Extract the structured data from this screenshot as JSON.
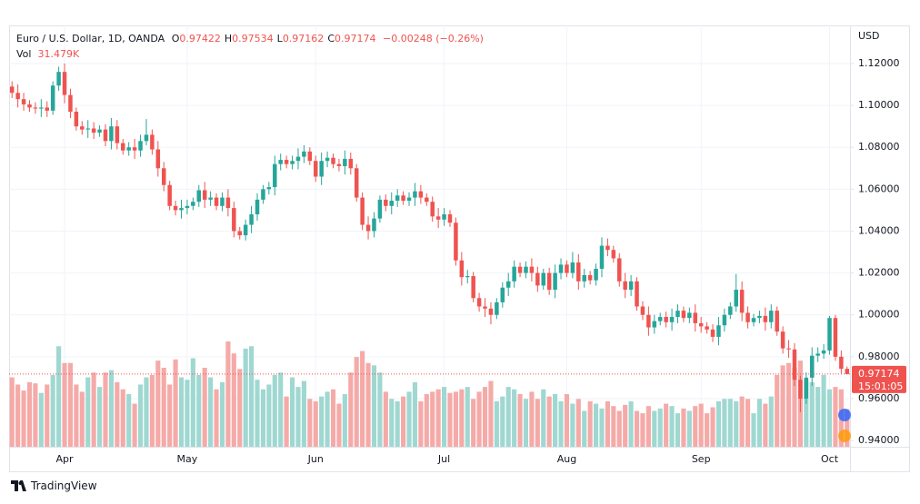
{
  "chart_data": {
    "type": "candlestick",
    "title": "Euro / U.S. Dollar, 1D, OANDA",
    "legend": [
      {
        "key": "O",
        "text": "0.97422"
      },
      {
        "key": "H",
        "text": "0.97534"
      },
      {
        "key": "L",
        "text": "0.97162"
      },
      {
        "key": "C",
        "text": "0.97174"
      }
    ],
    "change": "−0.00248 (−0.26%)",
    "volume_key": "Vol",
    "volume_text": "31.479K",
    "currency": "USD",
    "price_tag": {
      "price": "0.97174",
      "countdown": "15:01:05"
    },
    "brand": "TradingView",
    "up_color": "#26a69a",
    "down_color": "#ef5350",
    "volume_up_color": "#9fd8d1",
    "volume_down_color": "#f5aaa8",
    "grid": true,
    "categories": [
      null,
      null,
      null,
      null,
      null,
      null,
      null,
      null,
      null,
      "Apr",
      null,
      null,
      null,
      null,
      null,
      null,
      null,
      null,
      null,
      null,
      null,
      null,
      null,
      null,
      null,
      null,
      null,
      null,
      null,
      null,
      "May",
      null,
      null,
      null,
      null,
      null,
      null,
      null,
      null,
      null,
      null,
      null,
      null,
      null,
      null,
      null,
      null,
      null,
      null,
      null,
      null,
      null,
      "Jun",
      null,
      null,
      null,
      null,
      null,
      null,
      null,
      null,
      null,
      null,
      null,
      null,
      null,
      null,
      null,
      null,
      null,
      null,
      null,
      null,
      null,
      "Jul",
      null,
      null,
      null,
      null,
      null,
      null,
      null,
      null,
      null,
      null,
      null,
      null,
      null,
      null,
      null,
      null,
      null,
      null,
      null,
      null,
      "Aug",
      null,
      null,
      null,
      null,
      null,
      null,
      null,
      null,
      null,
      null,
      null,
      null,
      null,
      null,
      null,
      null,
      null,
      null,
      null,
      null,
      null,
      null,
      "Sep",
      null,
      null,
      null,
      null,
      null,
      null,
      null,
      null,
      null,
      null,
      null,
      null,
      null,
      null,
      null,
      null,
      null,
      null,
      null,
      null,
      null,
      "Oct",
      null,
      null,
      null
    ],
    "open": [
      1.109,
      1.106,
      1.103,
      1.1005,
      1.099,
      1.0985,
      1.099,
      1.0975,
      1.1095,
      1.116,
      1.105,
      1.097,
      1.09,
      1.0885,
      1.089,
      1.087,
      1.0885,
      1.083,
      1.09,
      1.082,
      1.0785,
      1.08,
      1.0785,
      1.083,
      1.086,
      1.079,
      1.07,
      1.062,
      1.052,
      1.05,
      1.051,
      1.052,
      1.054,
      1.0595,
      1.055,
      1.056,
      1.052,
      1.056,
      1.051,
      1.04,
      1.038,
      1.043,
      1.048,
      1.055,
      1.06,
      1.061,
      1.072,
      1.074,
      1.072,
      1.0735,
      1.0755,
      1.078,
      1.0735,
      1.066,
      1.0735,
      1.075,
      1.072,
      1.071,
      1.0745,
      1.07,
      1.056,
      1.043,
      1.04,
      1.046,
      1.055,
      1.052,
      1.0545,
      1.057,
      1.0545,
      1.056,
      1.059,
      1.056,
      1.054,
      1.047,
      1.0455,
      1.048,
      1.044,
      1.026,
      1.018,
      1.0185,
      1.008,
      1.004,
      1.003,
      1.0,
      1.006,
      1.013,
      1.016,
      1.023,
      1.02,
      1.023,
      1.02,
      1.014,
      1.02,
      1.012,
      1.02,
      1.024,
      1.02,
      1.025,
      1.016,
      1.019,
      1.0165,
      1.022,
      1.033,
      1.031,
      1.027,
      1.016,
      1.012,
      1.016,
      1.004,
      1.0,
      0.994,
      0.997,
      0.999,
      0.9965,
      0.999,
      1.002,
      0.9985,
      1.001,
      0.996,
      0.9945,
      0.993,
      0.9895,
      0.995,
      1.0,
      1.004,
      1.012,
      1.001,
      0.9965,
      0.9985,
      0.9995,
      0.9965,
      1.002,
      0.992,
      0.984,
      0.9835,
      0.969,
      0.96,
      0.97,
      0.9805,
      0.9815,
      0.983,
      0.9985,
      0.98,
      0.97422
    ],
    "high": [
      1.1115,
      1.11,
      1.106,
      1.1025,
      1.1015,
      1.103,
      1.102,
      1.1115,
      1.1185,
      1.12,
      1.108,
      1.099,
      1.0925,
      1.093,
      1.092,
      1.0905,
      1.091,
      1.094,
      1.093,
      1.084,
      1.0825,
      1.084,
      1.086,
      1.0935,
      1.0885,
      1.083,
      1.073,
      1.064,
      1.0545,
      1.055,
      1.055,
      1.056,
      1.062,
      1.0635,
      1.059,
      1.058,
      1.0585,
      1.06,
      1.054,
      1.042,
      1.0455,
      1.052,
      1.058,
      1.062,
      1.0635,
      1.076,
      1.077,
      1.076,
      1.076,
      1.0795,
      1.081,
      1.08,
      1.076,
      1.0775,
      1.078,
      1.077,
      1.0745,
      1.0785,
      1.0775,
      1.072,
      1.0585,
      1.047,
      1.049,
      1.057,
      1.0575,
      1.0585,
      1.06,
      1.059,
      1.0585,
      1.063,
      1.062,
      1.058,
      1.0565,
      1.051,
      1.051,
      1.05,
      1.0465,
      1.03,
      1.0215,
      1.0205,
      1.0105,
      1.008,
      1.006,
      1.008,
      1.0155,
      1.02,
      1.026,
      1.025,
      1.0255,
      1.027,
      1.023,
      1.022,
      1.0225,
      1.024,
      1.027,
      1.026,
      1.03,
      1.029,
      1.022,
      1.021,
      1.0245,
      1.037,
      1.0365,
      1.033,
      1.0295,
      1.02,
      1.019,
      1.018,
      1.0065,
      1.004,
      1.0,
      1.001,
      1.0015,
      1.003,
      1.005,
      1.004,
      1.0035,
      1.005,
      0.999,
      0.9965,
      0.9955,
      0.999,
      1.003,
      1.006,
      1.0195,
      1.016,
      1.004,
      1.0005,
      1.002,
      1.0035,
      1.005,
      1.004,
      0.9945,
      0.988,
      0.9865,
      0.971,
      0.9725,
      0.9845,
      0.9845,
      0.986,
      0.9995,
      1.0,
      0.983,
      0.97534
    ],
    "low": [
      1.1035,
      1.099,
      1.0975,
      1.097,
      1.096,
      1.0945,
      1.0945,
      1.0955,
      1.107,
      1.101,
      1.094,
      1.088,
      1.086,
      1.0845,
      1.084,
      1.085,
      1.0805,
      1.079,
      1.079,
      1.0765,
      1.076,
      1.0745,
      1.0755,
      1.081,
      1.0765,
      1.066,
      1.059,
      1.05,
      1.0475,
      1.046,
      1.048,
      1.05,
      1.0515,
      1.051,
      1.052,
      1.05,
      1.0495,
      1.047,
      1.037,
      1.036,
      1.0355,
      1.039,
      1.045,
      1.053,
      1.0575,
      1.057,
      1.069,
      1.07,
      1.0695,
      1.0695,
      1.0725,
      1.0715,
      1.0635,
      1.062,
      1.0705,
      1.07,
      1.0685,
      1.067,
      1.067,
      1.054,
      1.0405,
      1.036,
      1.037,
      1.044,
      1.0495,
      1.048,
      1.0515,
      1.0525,
      1.052,
      1.052,
      1.053,
      1.052,
      1.0445,
      1.0415,
      1.0425,
      1.042,
      1.0235,
      1.014,
      1.015,
      1.006,
      1.0015,
      0.999,
      0.9955,
      0.998,
      1.0035,
      1.009,
      1.013,
      1.018,
      1.0175,
      1.016,
      1.011,
      1.012,
      1.0095,
      1.008,
      1.017,
      1.018,
      1.0175,
      1.012,
      1.013,
      1.0145,
      1.014,
      1.018,
      1.028,
      1.025,
      1.0135,
      1.008,
      1.009,
      1.002,
      0.9975,
      0.99,
      0.991,
      0.995,
      0.994,
      0.9925,
      0.996,
      0.9965,
      0.996,
      0.992,
      0.9915,
      0.991,
      0.987,
      0.9855,
      0.992,
      0.998,
      1.0015,
      0.997,
      0.9935,
      0.9945,
      0.996,
      0.9925,
      0.9935,
      0.99,
      0.9815,
      0.9795,
      0.966,
      0.9535,
      0.9575,
      0.966,
      0.9775,
      0.979,
      0.981,
      0.978,
      0.972,
      0.97162
    ],
    "close": [
      1.106,
      1.103,
      1.1005,
      1.099,
      1.0985,
      1.099,
      1.0975,
      1.1095,
      1.116,
      1.105,
      1.097,
      1.09,
      1.0885,
      1.089,
      1.087,
      1.0885,
      1.083,
      1.09,
      1.082,
      1.0785,
      1.08,
      1.0785,
      1.083,
      1.086,
      1.079,
      1.07,
      1.062,
      1.052,
      1.05,
      1.051,
      1.052,
      1.054,
      1.0595,
      1.055,
      1.056,
      1.052,
      1.056,
      1.051,
      1.04,
      1.038,
      1.043,
      1.048,
      1.055,
      1.06,
      1.061,
      1.072,
      1.074,
      1.072,
      1.0735,
      1.0755,
      1.078,
      1.0735,
      1.066,
      1.0735,
      1.075,
      1.072,
      1.071,
      1.0745,
      1.07,
      1.056,
      1.043,
      1.04,
      1.046,
      1.055,
      1.052,
      1.0545,
      1.057,
      1.0545,
      1.056,
      1.059,
      1.056,
      1.054,
      1.047,
      1.0455,
      1.048,
      1.044,
      1.026,
      1.018,
      1.0185,
      1.008,
      1.004,
      1.003,
      1.0,
      1.006,
      1.013,
      1.016,
      1.023,
      1.02,
      1.023,
      1.02,
      1.014,
      1.02,
      1.012,
      1.02,
      1.024,
      1.02,
      1.025,
      1.016,
      1.019,
      1.0165,
      1.022,
      1.033,
      1.031,
      1.027,
      1.016,
      1.012,
      1.016,
      1.004,
      1.0,
      0.994,
      0.997,
      0.999,
      0.9965,
      0.999,
      1.002,
      0.9985,
      1.001,
      0.996,
      0.9945,
      0.993,
      0.9895,
      0.995,
      1.0,
      1.004,
      1.012,
      1.001,
      0.9965,
      0.9985,
      0.9995,
      0.9965,
      1.002,
      0.992,
      0.984,
      0.9835,
      0.969,
      0.96,
      0.97,
      0.9805,
      0.9815,
      0.983,
      0.9985,
      0.98,
      0.97422,
      0.97174
    ],
    "volume": [
      58,
      52,
      47,
      54,
      53,
      45,
      52,
      60,
      84,
      70,
      70,
      52,
      46,
      58,
      62,
      50,
      62,
      64,
      54,
      48,
      44,
      36,
      52,
      58,
      60,
      72,
      66,
      52,
      73,
      58,
      56,
      74,
      60,
      66,
      58,
      48,
      54,
      88,
      78,
      65,
      82,
      84,
      56,
      48,
      52,
      60,
      62,
      42,
      58,
      50,
      55,
      40,
      38,
      42,
      46,
      48,
      36,
      44,
      62,
      75,
      80,
      70,
      68,
      62,
      46,
      40,
      38,
      42,
      46,
      54,
      38,
      44,
      46,
      48,
      50,
      45,
      46,
      48,
      50,
      40,
      46,
      50,
      55,
      38,
      42,
      50,
      48,
      44,
      40,
      46,
      40,
      48,
      42,
      44,
      38,
      44,
      36,
      40,
      30,
      38,
      36,
      32,
      38,
      34,
      30,
      35,
      38,
      30,
      28,
      34,
      30,
      32,
      36,
      34,
      28,
      32,
      30,
      34,
      36,
      28,
      33,
      38,
      40,
      40,
      38,
      42,
      40,
      28,
      40,
      36,
      42,
      60,
      68,
      70,
      66,
      72,
      55,
      54,
      50,
      60,
      48,
      50,
      48,
      31.479
    ],
    "ylim": [
      0.937,
      1.1382
    ],
    "yticks": [
      {
        "value": 0.94,
        "label": "0.94000"
      },
      {
        "value": 0.96,
        "label": "0.96000"
      },
      {
        "value": 0.98,
        "label": "0.98000"
      },
      {
        "value": 1.0,
        "label": "1.00000"
      },
      {
        "value": 1.02,
        "label": "1.02000"
      },
      {
        "value": 1.04,
        "label": "1.04000"
      },
      {
        "value": 1.06,
        "label": "1.06000"
      },
      {
        "value": 1.08,
        "label": "1.08000"
      },
      {
        "value": 1.1,
        "label": "1.10000"
      },
      {
        "value": 1.12,
        "label": "1.12000"
      }
    ]
  }
}
